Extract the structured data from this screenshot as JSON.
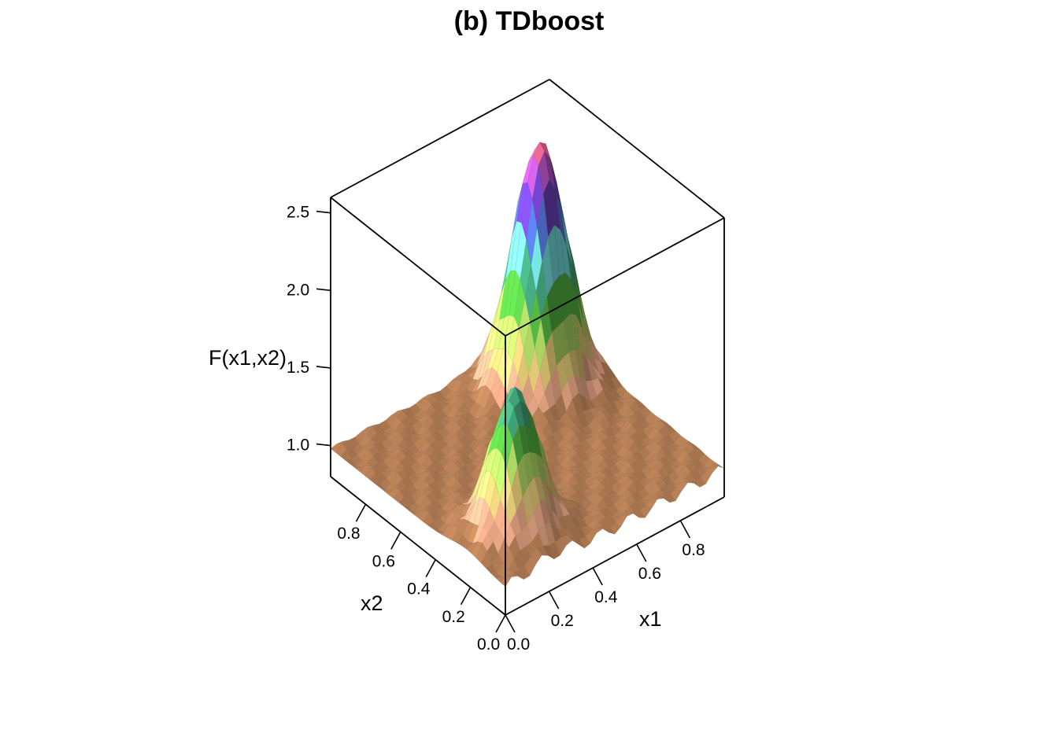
{
  "chart_data": {
    "type": "surface3d",
    "title": "(b) TDboost",
    "xlabel": "x1",
    "ylabel": "x2",
    "zlabel": "F(x1,x2)",
    "xlim": [
      0,
      1
    ],
    "ylim": [
      0,
      1
    ],
    "zlim": [
      0.8,
      2.6
    ],
    "x_ticks": [
      "0.0",
      "0.2",
      "0.4",
      "0.6",
      "0.8"
    ],
    "y_ticks": [
      "0.0",
      "0.2",
      "0.4",
      "0.6",
      "0.8"
    ],
    "z_ticks": [
      "1.0",
      "1.5",
      "2.0",
      "2.5"
    ],
    "baseline": 0.98,
    "peaks": [
      {
        "x1": 0.78,
        "x2": 0.78,
        "height": 1.6,
        "spread": 0.1
      },
      {
        "x1": 0.22,
        "x2": 0.22,
        "height": 0.9,
        "spread": 0.09
      }
    ],
    "colors": [
      "#6b4a2a",
      "#b07a52",
      "#e0a080",
      "#d8c070",
      "#a8d060",
      "#50b040",
      "#40a078",
      "#70d8d8",
      "#5070d0",
      "#6a40c0",
      "#b050c0",
      "#e06090"
    ]
  }
}
